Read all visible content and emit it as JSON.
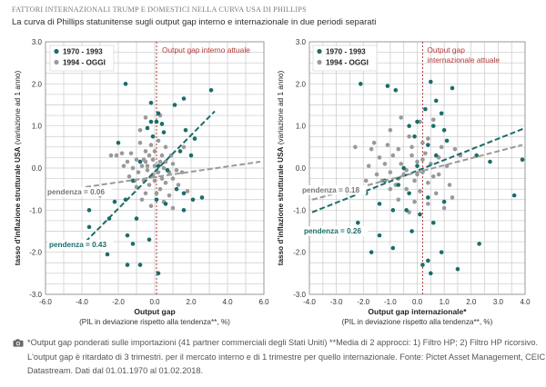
{
  "header": {
    "title": "FATTORI INTERNAZIONALI TRUMP E DOMESTICI NELLA CURVA USA DI PHILLIPS",
    "subtitle": "La curva di Phillips statunitense sugli output gap interno e internazionale in due periodi separati"
  },
  "caption": {
    "icon": "camera-icon",
    "line1": "*Output gap ponderati sulle importazioni (41 partner commerciali degli Stati Uniti) **Media di 2 approcci: 1) Filtro HP; 2) Filtro HP ricorsivo.",
    "line2": "L'output gap è ritardato di 3 trimestri. per il mercato interno e di 1 trimestre per quello internazionale. Fonte: Pictet Asset Management, CEIC,",
    "line3": "Datastream. Dati dal 01.01.1970 al 01.02.2018."
  },
  "colors": {
    "teal": "#1b6d6a",
    "grey": "#9a9a9a",
    "ref": "#b23a3a",
    "grid": "#c9c9c9"
  },
  "chart_data": [
    {
      "type": "scatter",
      "title": "",
      "xlabel": "Output gap",
      "xsublabel": "(PIL in deviazione rispetto alla tendenza**, %)",
      "ylabel": "tasso d'inflazione strutturale USA (variazione ad 1 anno)",
      "xlim": [
        -6.0,
        6.0
      ],
      "ylim": [
        -3.0,
        3.0
      ],
      "xticks": [
        "-6.0",
        "-4.0",
        "-2.0",
        "0.0",
        "2.0",
        "4.0",
        "6.0"
      ],
      "yticks": [
        "-3.0",
        "-2.0",
        "-1.0",
        "0.0",
        "1.0",
        "2.0",
        "3.0"
      ],
      "legend": [
        "1970 - 1993",
        "1994 - OGGI"
      ],
      "reference_line": {
        "x": 0.1,
        "label": "Output gap interno attuale"
      },
      "annotations": [
        {
          "text": "pendenza = 0.06",
          "series": "1994 - OGGI"
        },
        {
          "text": "pendenza = 0.43",
          "series": "1970 - 1993"
        }
      ],
      "trendlines": [
        {
          "series": "1970 - 1993",
          "x": [
            -3.8,
            3.3
          ],
          "y": [
            -1.75,
            1.35
          ]
        },
        {
          "series": "1994 - OGGI",
          "x": [
            -3.8,
            5.8
          ],
          "y": [
            -0.45,
            0.15
          ]
        }
      ],
      "series": [
        {
          "name": "1970 - 1993",
          "points": [
            [
              -1.6,
              2.0
            ],
            [
              3.1,
              1.85
            ],
            [
              1.6,
              1.65
            ],
            [
              -0.2,
              1.55
            ],
            [
              1.1,
              1.5
            ],
            [
              0.2,
              1.3
            ],
            [
              -0.2,
              1.1
            ],
            [
              0.1,
              1.1
            ],
            [
              0.4,
              1.05
            ],
            [
              -0.4,
              0.95
            ],
            [
              1.7,
              0.9
            ],
            [
              2.2,
              0.7
            ],
            [
              -2.0,
              0.6
            ],
            [
              -0.1,
              0.75
            ],
            [
              0.5,
              0.85
            ],
            [
              1.4,
              0.4
            ],
            [
              2.0,
              0.3
            ],
            [
              -0.8,
              0.15
            ],
            [
              0.2,
              0.05
            ],
            [
              0.7,
              -0.05
            ],
            [
              -1.2,
              -0.3
            ],
            [
              1.2,
              -0.5
            ],
            [
              1.6,
              -0.6
            ],
            [
              2.1,
              -0.75
            ],
            [
              2.6,
              -0.7
            ],
            [
              -3.0,
              -0.65
            ],
            [
              -2.2,
              -0.8
            ],
            [
              -1.6,
              -0.75
            ],
            [
              0.1,
              -0.75
            ],
            [
              0.6,
              -0.85
            ],
            [
              1.6,
              -1.0
            ],
            [
              -3.6,
              -1.0
            ],
            [
              -2.5,
              -1.2
            ],
            [
              -1.0,
              -1.2
            ],
            [
              -3.6,
              -1.4
            ],
            [
              -1.5,
              -1.6
            ],
            [
              -1.2,
              -1.8
            ],
            [
              -2.6,
              -2.05
            ],
            [
              -1.5,
              -2.3
            ],
            [
              0.2,
              -2.5
            ],
            [
              -0.8,
              -2.3
            ],
            [
              -0.3,
              -1.7
            ]
          ]
        },
        {
          "name": "1994 - OGGI",
          "points": [
            [
              -0.5,
              1.2
            ],
            [
              0.3,
              1.25
            ],
            [
              -0.8,
              0.9
            ],
            [
              0.2,
              0.65
            ],
            [
              -0.2,
              0.55
            ],
            [
              0.6,
              0.5
            ],
            [
              -1.3,
              0.35
            ],
            [
              -0.5,
              0.4
            ],
            [
              -2.4,
              0.3
            ],
            [
              -2.1,
              0.3
            ],
            [
              -1.8,
              0.35
            ],
            [
              -0.3,
              0.3
            ],
            [
              0.4,
              0.3
            ],
            [
              0.9,
              0.3
            ],
            [
              -1.5,
              0.15
            ],
            [
              -1.0,
              0.2
            ],
            [
              -0.6,
              0.2
            ],
            [
              -0.1,
              0.2
            ],
            [
              0.6,
              0.15
            ],
            [
              1.0,
              0.1
            ],
            [
              -1.7,
              0.05
            ],
            [
              -1.2,
              0.0
            ],
            [
              -0.7,
              0.05
            ],
            [
              0.0,
              0.05
            ],
            [
              0.5,
              0.0
            ],
            [
              1.2,
              -0.05
            ],
            [
              -0.9,
              -0.1
            ],
            [
              -0.4,
              -0.05
            ],
            [
              0.2,
              -0.1
            ],
            [
              0.8,
              -0.1
            ],
            [
              1.5,
              -0.1
            ],
            [
              -1.4,
              -0.2
            ],
            [
              -0.2,
              -0.2
            ],
            [
              0.4,
              -0.25
            ],
            [
              1.0,
              -0.25
            ],
            [
              -0.6,
              -0.3
            ],
            [
              0.0,
              -0.3
            ],
            [
              0.6,
              -0.35
            ],
            [
              1.3,
              -0.4
            ],
            [
              -1.0,
              -0.45
            ],
            [
              -0.3,
              -0.4
            ],
            [
              0.3,
              -0.5
            ],
            [
              1.8,
              -0.55
            ],
            [
              -0.5,
              -0.6
            ],
            [
              0.1,
              -0.6
            ],
            [
              0.8,
              -0.65
            ],
            [
              -0.7,
              -0.75
            ],
            [
              0.5,
              -0.8
            ],
            [
              -0.2,
              -0.9
            ],
            [
              1.0,
              -0.95
            ],
            [
              -1.1,
              -0.3
            ],
            [
              1.6,
              0.5
            ],
            [
              -0.8,
              0.6
            ],
            [
              0.0,
              0.4
            ],
            [
              -0.4,
              0.05
            ],
            [
              0.3,
              0.15
            ],
            [
              -0.1,
              -0.15
            ],
            [
              -0.5,
              0.15
            ]
          ]
        }
      ]
    },
    {
      "type": "scatter",
      "title": "",
      "xlabel": "Output gap internazionale*",
      "xsublabel": "(PIL in deviazione rispetto alla tendenza**, %)",
      "ylabel": "tasso d'inflazione strutturale USA (variazione ad 1 anno)",
      "xlim": [
        -4.0,
        4.0
      ],
      "ylim": [
        -3.0,
        3.0
      ],
      "xticks": [
        "-4.0",
        "-3.0",
        "-2.0",
        "-1.0",
        "0.0",
        "1.0",
        "2.0",
        "3.0",
        "4.0"
      ],
      "yticks": [
        "-3.0",
        "-2.0",
        "-1.0",
        "0.0",
        "1.0",
        "2.0",
        "3.0"
      ],
      "legend": [
        "1970 - 1993",
        "1994 - OGGI"
      ],
      "reference_line": {
        "x": 0.2,
        "label": "Output gap internazionale attuale"
      },
      "annotations": [
        {
          "text": "pendenza = 0.18",
          "series": "1994 - OGGI"
        },
        {
          "text": "pendenza = 0.26",
          "series": "1970 - 1993"
        }
      ],
      "trendlines": [
        {
          "series": "1970 - 1993",
          "x": [
            -3.9,
            4.0
          ],
          "y": [
            -1.05,
            0.95
          ]
        },
        {
          "series": "1994 - OGGI",
          "x": [
            -3.9,
            3.9
          ],
          "y": [
            -0.75,
            0.55
          ]
        }
      ],
      "series": [
        {
          "name": "1970 - 1993",
          "points": [
            [
              -2.1,
              2.0
            ],
            [
              -1.1,
              1.95
            ],
            [
              -0.8,
              1.85
            ],
            [
              0.5,
              2.05
            ],
            [
              1.3,
              1.9
            ],
            [
              0.7,
              1.6
            ],
            [
              0.9,
              1.3
            ],
            [
              0.3,
              1.4
            ],
            [
              0.0,
              1.1
            ],
            [
              -0.3,
              1.0
            ],
            [
              0.6,
              1.0
            ],
            [
              1.0,
              0.9
            ],
            [
              -0.1,
              0.75
            ],
            [
              0.4,
              0.55
            ],
            [
              1.1,
              0.65
            ],
            [
              2.2,
              0.3
            ],
            [
              2.7,
              0.15
            ],
            [
              3.9,
              0.2
            ],
            [
              0.7,
              0.3
            ],
            [
              -0.5,
              0.0
            ],
            [
              0.0,
              0.05
            ],
            [
              -1.2,
              -0.3
            ],
            [
              -0.7,
              -0.4
            ],
            [
              -0.3,
              -0.6
            ],
            [
              0.4,
              -0.7
            ],
            [
              1.0,
              -0.8
            ],
            [
              -1.9,
              -0.6
            ],
            [
              -1.4,
              -0.85
            ],
            [
              -0.9,
              -1.0
            ],
            [
              -0.4,
              -1.0
            ],
            [
              0.1,
              -1.1
            ],
            [
              0.6,
              -1.3
            ],
            [
              -2.2,
              -1.3
            ],
            [
              -1.4,
              -1.6
            ],
            [
              -0.9,
              -1.9
            ],
            [
              -1.7,
              -2.0
            ],
            [
              0.4,
              -2.2
            ],
            [
              0.9,
              -2.0
            ],
            [
              2.3,
              -1.8
            ],
            [
              0.5,
              -2.5
            ],
            [
              1.5,
              -2.4
            ],
            [
              3.6,
              -0.65
            ],
            [
              -0.2,
              -1.5
            ],
            [
              0.2,
              -2.3
            ]
          ]
        },
        {
          "name": "1994 - OGGI",
          "points": [
            [
              -0.6,
              1.2
            ],
            [
              0.1,
              1.1
            ],
            [
              0.6,
              1.15
            ],
            [
              -1.0,
              0.9
            ],
            [
              -0.3,
              0.75
            ],
            [
              0.4,
              0.7
            ],
            [
              -2.3,
              0.5
            ],
            [
              -1.7,
              0.45
            ],
            [
              -0.7,
              0.45
            ],
            [
              0.9,
              0.5
            ],
            [
              1.4,
              0.45
            ],
            [
              -1.4,
              0.25
            ],
            [
              -0.9,
              0.3
            ],
            [
              -0.2,
              0.3
            ],
            [
              0.3,
              0.35
            ],
            [
              0.8,
              0.25
            ],
            [
              1.6,
              0.3
            ],
            [
              -1.8,
              0.05
            ],
            [
              -1.2,
              0.1
            ],
            [
              -0.6,
              0.1
            ],
            [
              0.0,
              0.15
            ],
            [
              0.5,
              0.1
            ],
            [
              1.1,
              0.05
            ],
            [
              -1.5,
              -0.15
            ],
            [
              -1.0,
              -0.1
            ],
            [
              -0.4,
              -0.05
            ],
            [
              0.2,
              -0.1
            ],
            [
              0.8,
              -0.15
            ],
            [
              -1.9,
              -0.3
            ],
            [
              -1.3,
              -0.3
            ],
            [
              -0.7,
              -0.25
            ],
            [
              -0.1,
              -0.3
            ],
            [
              0.4,
              -0.35
            ],
            [
              1.2,
              -0.4
            ],
            [
              -1.0,
              -0.5
            ],
            [
              -0.4,
              -0.5
            ],
            [
              0.1,
              -0.55
            ],
            [
              0.7,
              -0.6
            ],
            [
              -0.7,
              -0.75
            ],
            [
              -0.1,
              -0.8
            ],
            [
              0.4,
              -0.85
            ],
            [
              1.0,
              -0.95
            ],
            [
              -0.3,
              -1.05
            ],
            [
              1.3,
              -0.7
            ],
            [
              -2.6,
              -0.6
            ],
            [
              -1.6,
              0.6
            ],
            [
              0.2,
              0.6
            ],
            [
              -0.5,
              -0.15
            ],
            [
              0.0,
              -0.15
            ],
            [
              0.6,
              -0.2
            ],
            [
              -0.2,
              0.5
            ],
            [
              -1.1,
              0.55
            ],
            [
              0.2,
              0.2
            ],
            [
              -0.8,
              -0.4
            ]
          ]
        }
      ]
    }
  ]
}
